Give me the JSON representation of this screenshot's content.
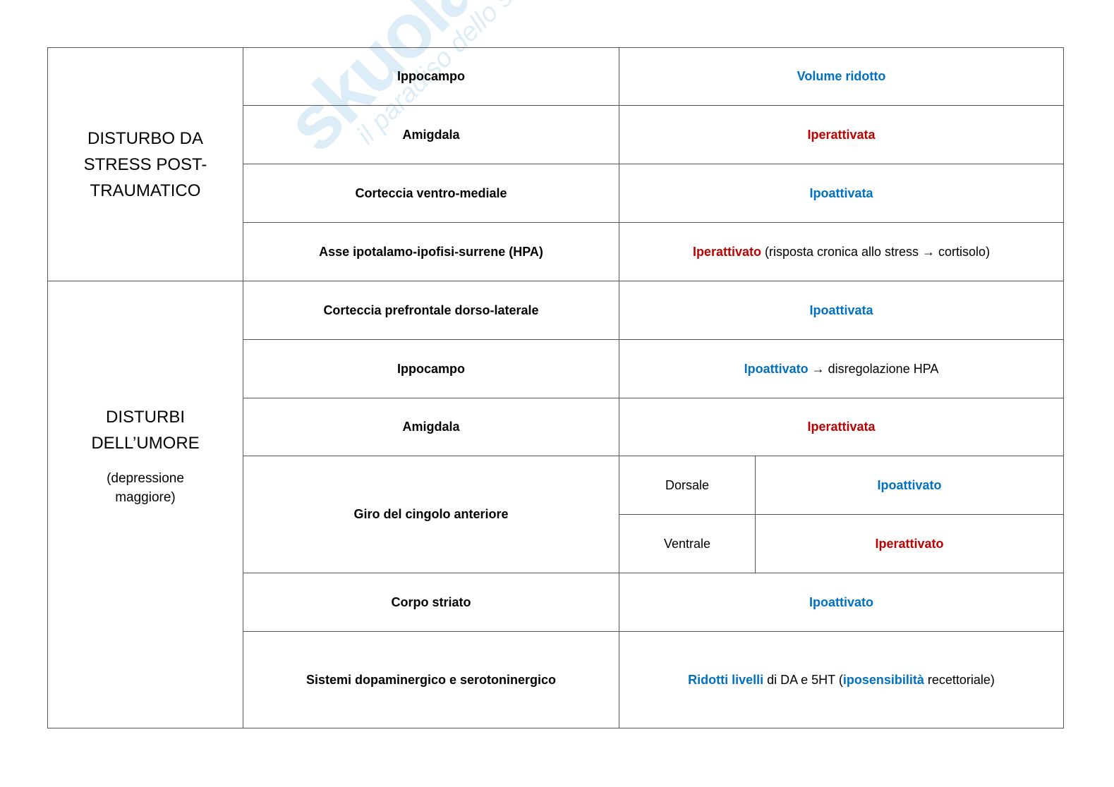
{
  "watermark": {
    "logo": "skuola.net",
    "tagline": "il paradiso dello studente"
  },
  "colors": {
    "hypo": "#0070c0",
    "hyper": "#c00000"
  },
  "groups": [
    {
      "title": "DISTURBO DA STRESS POST-TRAUMATICO",
      "rows": [
        {
          "region": "Ippocampo",
          "effect": "Volume ridotto",
          "effect_type": "hypo"
        },
        {
          "region": "Amigdala",
          "effect": "Iperattivata",
          "effect_type": "hyper"
        },
        {
          "region": "Corteccia ventro-mediale",
          "effect": "Ipoattivata",
          "effect_type": "hypo"
        },
        {
          "region": "Asse ipotalamo-ipofisi-surrene (HPA)",
          "effect": "Iperattivato",
          "effect_type": "hyper",
          "note": " (risposta cronica allo stress → cortisolo)"
        }
      ]
    },
    {
      "title": "DISTURBI DELL’UMORE",
      "subtitle": "(depressione maggiore)",
      "rows": [
        {
          "region": "Corteccia prefrontale dorso-laterale",
          "effect": "Ipoattivata",
          "effect_type": "hypo"
        },
        {
          "region": "Ippocampo",
          "effect": "Ipoattivato",
          "effect_type": "hypo",
          "note": " → disregolazione HPA"
        },
        {
          "region": "Amigdala",
          "effect": "Iperattivata",
          "effect_type": "hyper"
        },
        {
          "region": "Giro del cingolo anteriore",
          "subrows": [
            {
              "part": "Dorsale",
              "effect": "Ipoattivato",
              "effect_type": "hypo"
            },
            {
              "part": "Ventrale",
              "effect": "Iperattivato",
              "effect_type": "hyper"
            }
          ]
        },
        {
          "region": "Corpo striato",
          "effect": "Ipoattivato",
          "effect_type": "hypo"
        },
        {
          "region": "Sistemi dopaminergico e serotoninergico",
          "effect_parts": [
            "Ridotti livelli",
            " di DA e 5HT (",
            "iposensibilità",
            " recettoriale)"
          ]
        }
      ]
    }
  ]
}
